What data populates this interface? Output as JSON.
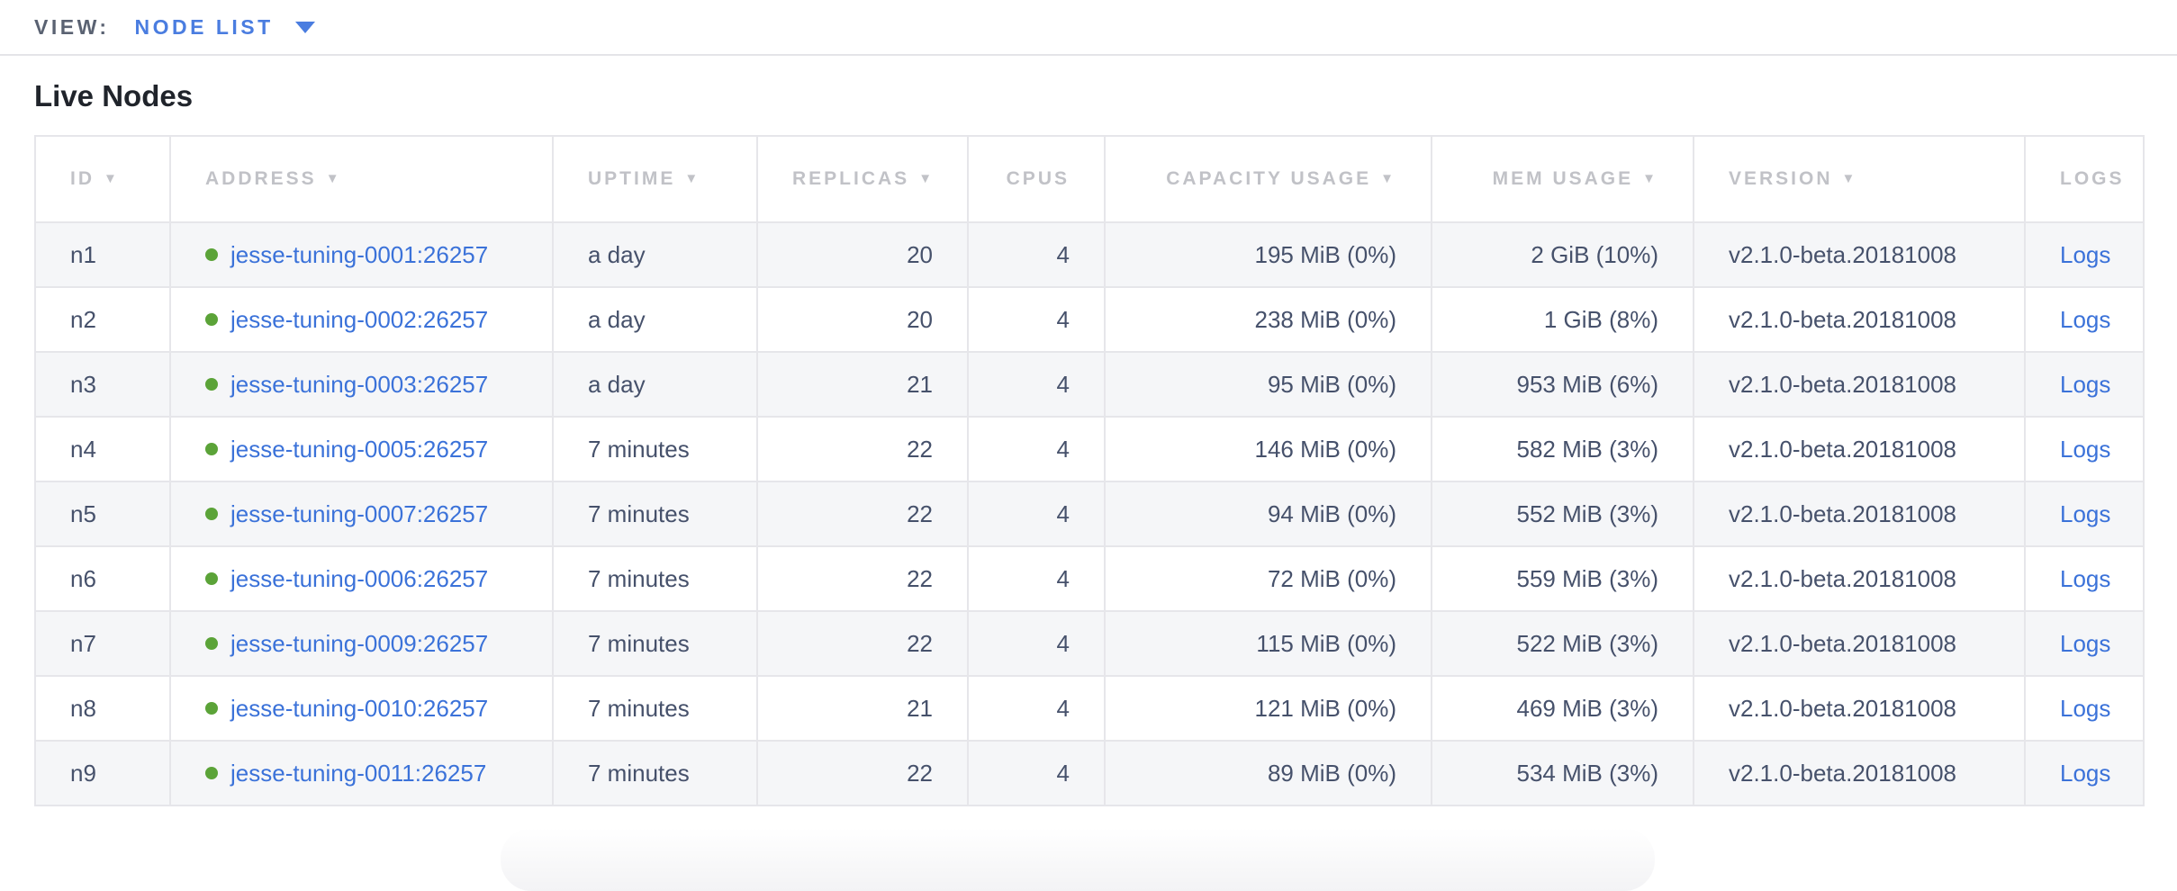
{
  "view_bar": {
    "label": "VIEW:",
    "selected": "NODE LIST",
    "caret_icon": "chevron-down"
  },
  "page": {
    "title": "Live Nodes"
  },
  "table": {
    "sort_arrow_icon": "▼",
    "columns": [
      {
        "key": "id",
        "label": "ID",
        "sortable": true,
        "align": "left"
      },
      {
        "key": "address",
        "label": "ADDRESS",
        "sortable": true,
        "align": "left"
      },
      {
        "key": "uptime",
        "label": "UPTIME",
        "sortable": true,
        "align": "left"
      },
      {
        "key": "replicas",
        "label": "REPLICAS",
        "sortable": true,
        "align": "right"
      },
      {
        "key": "cpus",
        "label": "CPUS",
        "sortable": false,
        "align": "right"
      },
      {
        "key": "capacity",
        "label": "CAPACITY USAGE",
        "sortable": true,
        "align": "right"
      },
      {
        "key": "mem",
        "label": "MEM USAGE",
        "sortable": true,
        "align": "right"
      },
      {
        "key": "version",
        "label": "VERSION",
        "sortable": true,
        "align": "left"
      },
      {
        "key": "logs",
        "label": "LOGS",
        "sortable": false,
        "align": "center"
      }
    ],
    "rows": [
      {
        "id": "n1",
        "status": "live",
        "address": "jesse-tuning-0001:26257",
        "uptime": "a day",
        "replicas": "20",
        "cpus": "4",
        "capacity": "195 MiB (0%)",
        "mem": "2 GiB (10%)",
        "version": "v2.1.0-beta.20181008",
        "logs": "Logs"
      },
      {
        "id": "n2",
        "status": "live",
        "address": "jesse-tuning-0002:26257",
        "uptime": "a day",
        "replicas": "20",
        "cpus": "4",
        "capacity": "238 MiB (0%)",
        "mem": "1 GiB (8%)",
        "version": "v2.1.0-beta.20181008",
        "logs": "Logs"
      },
      {
        "id": "n3",
        "status": "live",
        "address": "jesse-tuning-0003:26257",
        "uptime": "a day",
        "replicas": "21",
        "cpus": "4",
        "capacity": "95 MiB (0%)",
        "mem": "953 MiB (6%)",
        "version": "v2.1.0-beta.20181008",
        "logs": "Logs"
      },
      {
        "id": "n4",
        "status": "live",
        "address": "jesse-tuning-0005:26257",
        "uptime": "7 minutes",
        "replicas": "22",
        "cpus": "4",
        "capacity": "146 MiB (0%)",
        "mem": "582 MiB (3%)",
        "version": "v2.1.0-beta.20181008",
        "logs": "Logs"
      },
      {
        "id": "n5",
        "status": "live",
        "address": "jesse-tuning-0007:26257",
        "uptime": "7 minutes",
        "replicas": "22",
        "cpus": "4",
        "capacity": "94 MiB (0%)",
        "mem": "552 MiB (3%)",
        "version": "v2.1.0-beta.20181008",
        "logs": "Logs"
      },
      {
        "id": "n6",
        "status": "live",
        "address": "jesse-tuning-0006:26257",
        "uptime": "7 minutes",
        "replicas": "22",
        "cpus": "4",
        "capacity": "72 MiB (0%)",
        "mem": "559 MiB (3%)",
        "version": "v2.1.0-beta.20181008",
        "logs": "Logs"
      },
      {
        "id": "n7",
        "status": "live",
        "address": "jesse-tuning-0009:26257",
        "uptime": "7 minutes",
        "replicas": "22",
        "cpus": "4",
        "capacity": "115 MiB (0%)",
        "mem": "522 MiB (3%)",
        "version": "v2.1.0-beta.20181008",
        "logs": "Logs"
      },
      {
        "id": "n8",
        "status": "live",
        "address": "jesse-tuning-0010:26257",
        "uptime": "7 minutes",
        "replicas": "21",
        "cpus": "4",
        "capacity": "121 MiB (0%)",
        "mem": "469 MiB (3%)",
        "version": "v2.1.0-beta.20181008",
        "logs": "Logs"
      },
      {
        "id": "n9",
        "status": "live",
        "address": "jesse-tuning-0011:26257",
        "uptime": "7 minutes",
        "replicas": "22",
        "cpus": "4",
        "capacity": "89 MiB (0%)",
        "mem": "534 MiB (3%)",
        "version": "v2.1.0-beta.20181008",
        "logs": "Logs"
      }
    ]
  },
  "colors": {
    "accent_blue": "#4a7de0",
    "link_blue": "#3b72d9",
    "live_green": "#5ba338",
    "header_gray": "#c1c2c7",
    "row_text": "#46516b",
    "row_alt_bg": "#f5f6f8",
    "border": "#e6e6ea"
  }
}
